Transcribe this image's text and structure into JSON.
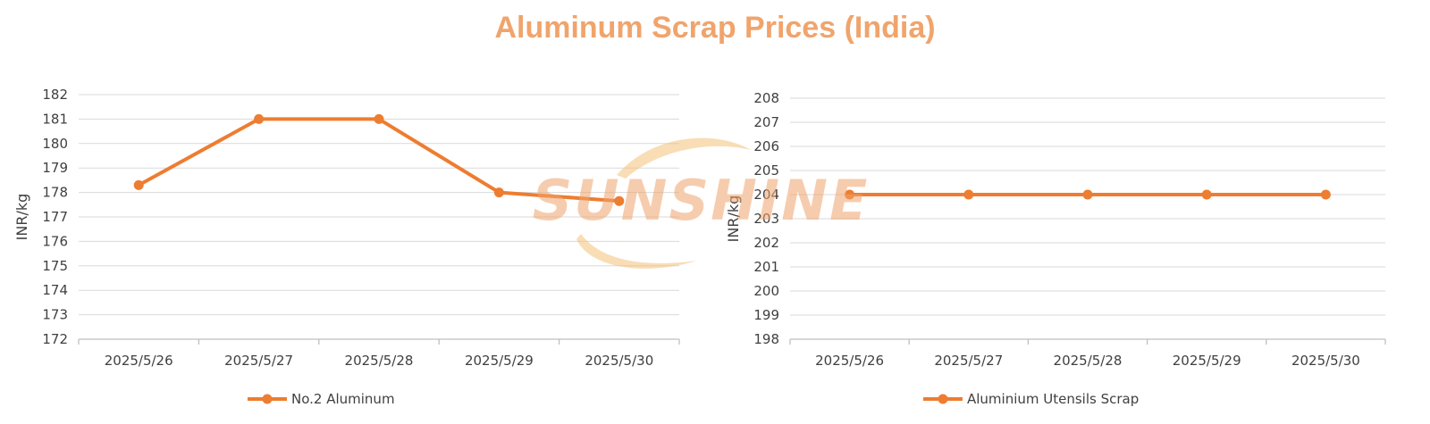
{
  "page": {
    "title": "Aluminum Scrap Prices (India)"
  },
  "watermark": {
    "text": "SUNSHINE",
    "color": "#f0a46c"
  },
  "colors": {
    "series": "#ed7d31",
    "grid": "#d9d9d9",
    "axis": "#bfbfbf",
    "text": "#404040"
  },
  "chart_data": [
    {
      "type": "line",
      "categories": [
        "2025/5/26",
        "2025/5/27",
        "2025/5/28",
        "2025/5/29",
        "2025/5/30"
      ],
      "series": [
        {
          "name": "No.2 Aluminum",
          "values": [
            178.3,
            181,
            181,
            178,
            177.65
          ]
        }
      ],
      "ylabel": "INR/kg",
      "ylim": [
        172,
        182
      ],
      "yticks": [
        "172",
        "173",
        "174",
        "175",
        "176",
        "177",
        "178",
        "179",
        "180",
        "181",
        "182"
      ],
      "grid": true,
      "legend": "bottom"
    },
    {
      "type": "line",
      "categories": [
        "2025/5/26",
        "2025/5/27",
        "2025/5/28",
        "2025/5/29",
        "2025/5/30"
      ],
      "series": [
        {
          "name": "Aluminium Utensils Scrap",
          "values": [
            204,
            204,
            204,
            204,
            204
          ]
        }
      ],
      "ylabel": "INR/kg",
      "ylim": [
        198,
        208
      ],
      "yticks": [
        "198",
        "199",
        "200",
        "201",
        "202",
        "203",
        "204",
        "205",
        "206",
        "207",
        "208"
      ],
      "grid": true,
      "legend": "bottom"
    }
  ]
}
